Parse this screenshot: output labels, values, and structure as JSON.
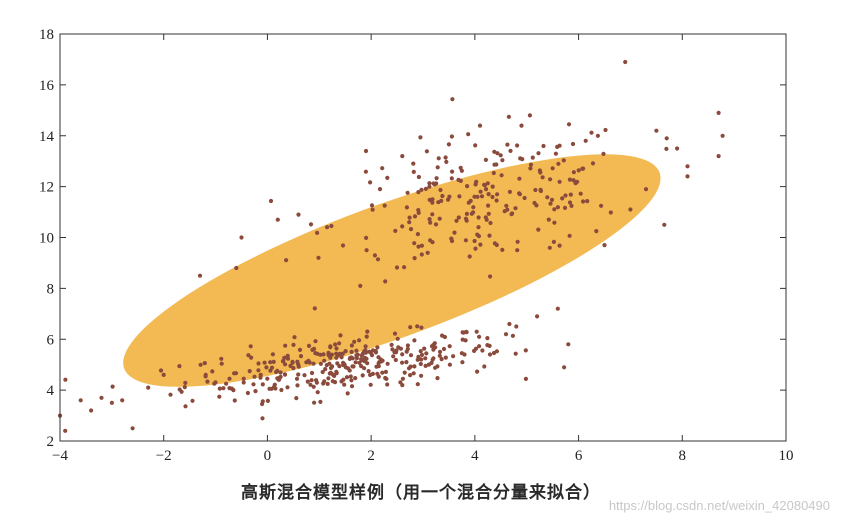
{
  "chart_data": {
    "type": "scatter",
    "title": "",
    "xlabel": "高斯混合模型样例（用一个混合分量来拟合）",
    "ylabel": "",
    "xlim": [
      -4,
      10
    ],
    "ylim": [
      2,
      18
    ],
    "xticks": [
      -4,
      -2,
      0,
      2,
      4,
      6,
      8,
      10
    ],
    "yticks": [
      2,
      4,
      6,
      8,
      10,
      12,
      14,
      16,
      18
    ],
    "grid": false,
    "legend": "none",
    "colors": {
      "points": "#8a4a3c",
      "ellipse": "#f2b444"
    },
    "ellipse": {
      "center": [
        2.4,
        8.7
      ],
      "semi_major": 6.55,
      "semi_minor": 2.2,
      "angle_deg": 40.5
    },
    "clusters": [
      {
        "name": "lower",
        "center": [
          1.5,
          5.0
        ],
        "count": 330,
        "spread_x": 1.55,
        "spread_y": 0.62,
        "corr": 0.55
      },
      {
        "name": "upper",
        "center": [
          4.2,
          11.5
        ],
        "count": 230,
        "spread_x": 1.45,
        "spread_y": 1.35,
        "corr": 0.35
      }
    ],
    "outliers": [
      [
        -3.6,
        3.6
      ],
      [
        -3.4,
        3.2
      ],
      [
        -3.2,
        3.7
      ],
      [
        -3.0,
        3.5
      ],
      [
        -2.8,
        3.6
      ],
      [
        -3.9,
        2.4
      ],
      [
        -4.0,
        3.0
      ],
      [
        -2.6,
        2.5
      ],
      [
        -2.3,
        4.1
      ],
      [
        -2.0,
        4.6
      ],
      [
        -1.3,
        8.5
      ],
      [
        -0.6,
        8.8
      ],
      [
        -0.5,
        10.0
      ],
      [
        0.2,
        10.7
      ],
      [
        0.6,
        10.9
      ],
      [
        1.9,
        13.4
      ],
      [
        2.6,
        13.2
      ],
      [
        4.1,
        14.4
      ],
      [
        4.9,
        14.4
      ],
      [
        6.9,
        16.9
      ],
      [
        7.5,
        14.2
      ],
      [
        7.7,
        13.9
      ],
      [
        7.9,
        13.5
      ],
      [
        8.1,
        12.8
      ],
      [
        8.1,
        12.4
      ],
      [
        8.7,
        14.9
      ],
      [
        8.7,
        13.2
      ],
      [
        7.3,
        11.9
      ],
      [
        7.0,
        11.1
      ],
      [
        6.5,
        9.7
      ],
      [
        5.6,
        7.2
      ],
      [
        5.2,
        6.9
      ],
      [
        4.8,
        6.5
      ],
      [
        4.6,
        6.2
      ],
      [
        3.8,
        5.4
      ]
    ]
  },
  "watermark": "https://blog.csdn.net/weixin_42080490"
}
